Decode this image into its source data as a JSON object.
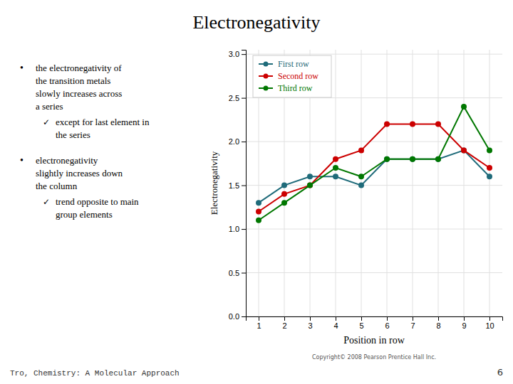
{
  "chart_data": {
    "type": "line",
    "title": "Electronegativity",
    "x_label": "Position in row",
    "y_label": "Electronegativity",
    "x": [
      1,
      2,
      3,
      4,
      5,
      6,
      7,
      8,
      9,
      10
    ],
    "series": [
      {
        "name": "First row",
        "color": "#1F6B7A",
        "marker": "circle",
        "values": [
          1.3,
          1.5,
          1.6,
          1.6,
          1.5,
          1.8,
          1.8,
          1.8,
          1.9,
          1.6
        ]
      },
      {
        "name": "Second row",
        "color": "#CC0000",
        "marker": "circle",
        "values": [
          1.2,
          1.4,
          1.5,
          1.8,
          1.9,
          2.2,
          2.2,
          2.2,
          1.9,
          1.7
        ]
      },
      {
        "name": "Third row",
        "color": "#007700",
        "marker": "circle",
        "values": [
          1.1,
          1.3,
          1.5,
          1.7,
          1.6,
          1.8,
          1.8,
          1.8,
          2.4,
          1.9
        ]
      }
    ],
    "xlim": [
      0.5,
      10.5
    ],
    "ylim": [
      0.0,
      3.05
    ],
    "xticks": [
      1,
      2,
      3,
      4,
      5,
      6,
      7,
      8,
      9,
      10
    ],
    "yticks": [
      {
        "value": 0.0,
        "label": "0.0"
      },
      0.5,
      {
        "value": 1.0,
        "label": "1.0"
      },
      1.5,
      {
        "value": 2.0,
        "label": "2.0"
      },
      2.5,
      {
        "value": 3.0,
        "label": "3.0"
      }
    ],
    "grid": true,
    "legend": "upper left",
    "bullet_mark": "•",
    "check_mark": "✓",
    "bullets": [
      {
        "lines": [
          "the electronegativity of",
          "the transition metals",
          "slowly increases across",
          "a series"
        ],
        "sub": [
          "except for last element in",
          "the series"
        ]
      },
      {
        "lines": [
          "electronegativity",
          "slightly increases down",
          "the column"
        ],
        "sub": [
          "trend opposite to main",
          "group elements"
        ]
      }
    ],
    "copyright": "Copyright© 2008 Pearson Prentice Hall Inc.",
    "footnote": "Tro, Chemistry: A Molecular Approach",
    "page_number": "6"
  }
}
